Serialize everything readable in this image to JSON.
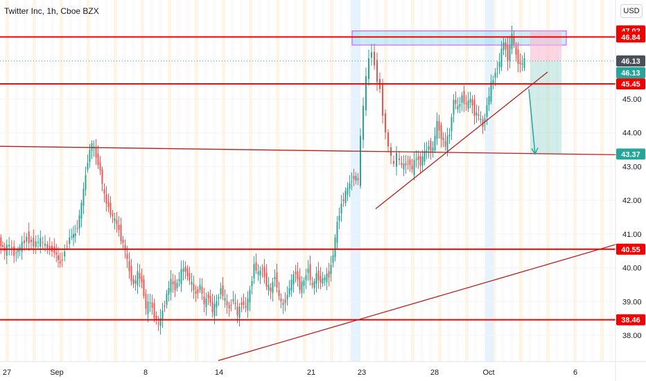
{
  "header": {
    "title": "Twitter Inc, 1h, Cboe BZX"
  },
  "currency_button": {
    "label": "USD"
  },
  "colors": {
    "up": "#26a69a",
    "down": "#ef5350",
    "resistance": "#f20000",
    "trendline": "#b71c1c",
    "current_price": "#4a5059",
    "target_zone": "#b2dfdb",
    "supply_zone": "#80deea",
    "supply_border": "#e040fb",
    "session_orange": "#fff3e0",
    "session_blue": "#e3f2fd"
  },
  "chart_data": {
    "type": "candlestick",
    "title": "Twitter Inc, 1h, Cboe BZX",
    "ylim": [
      37.2,
      48.2
    ],
    "x_ticks": [
      "27",
      "Sep",
      "8",
      "14",
      "21",
      "23",
      "28",
      "Oct",
      "6"
    ],
    "y_ticks": [
      "38.00",
      "39.00",
      "40.00",
      "41.00",
      "42.00",
      "43.00",
      "44.00",
      "45.00"
    ],
    "horizontal_levels": [
      {
        "price": 47.02,
        "label": "47.02"
      },
      {
        "price": 46.84,
        "label": "46.84"
      },
      {
        "price": 45.45,
        "label": "45.45"
      },
      {
        "price": 40.55,
        "label": "40.55"
      },
      {
        "price": 38.46,
        "label": "38.46"
      }
    ],
    "current_price": {
      "price": 46.13,
      "label": "46.13",
      "label2": "46.13"
    },
    "target_price": {
      "price": 43.37,
      "label": "43.37"
    },
    "trendlines": [
      {
        "from": {
          "x": 0,
          "price": 43.6
        },
        "to": {
          "x": 890,
          "price": 43.35
        }
      },
      {
        "from": {
          "x": 542,
          "price": 41.75
        },
        "to": {
          "x": 790,
          "price": 45.8
        }
      },
      {
        "from": {
          "x": 315,
          "price": 37.25
        },
        "to": {
          "x": 890,
          "price": 40.7
        }
      }
    ],
    "supply_zone": {
      "x0": 508,
      "x1": 817,
      "top": 47.02,
      "bottom": 46.6
    },
    "forecast_box": {
      "x0": 765,
      "x1": 810,
      "entry": 46.13,
      "stop": 47.02,
      "target": 43.37
    },
    "forecast_arrow": {
      "from": {
        "x": 763,
        "price": 45.3
      },
      "to": {
        "x": 772,
        "price": 43.37
      }
    },
    "path_points": [
      [
        0,
        40.8
      ],
      [
        8,
        40.5
      ],
      [
        15,
        40.7
      ],
      [
        22,
        40.4
      ],
      [
        30,
        40.6
      ],
      [
        40,
        40.9
      ],
      [
        50,
        40.7
      ],
      [
        60,
        40.8
      ],
      [
        70,
        40.6
      ],
      [
        80,
        40.5
      ],
      [
        88,
        40.1
      ],
      [
        95,
        40.5
      ],
      [
        102,
        40.9
      ],
      [
        110,
        41.0
      ],
      [
        116,
        41.5
      ],
      [
        122,
        42.3
      ],
      [
        128,
        43.2
      ],
      [
        134,
        43.7
      ],
      [
        140,
        43.3
      ],
      [
        146,
        42.9
      ],
      [
        152,
        42.1
      ],
      [
        158,
        41.8
      ],
      [
        164,
        41.5
      ],
      [
        170,
        41.3
      ],
      [
        176,
        40.9
      ],
      [
        182,
        40.5
      ],
      [
        188,
        39.9
      ],
      [
        194,
        39.5
      ],
      [
        200,
        39.8
      ],
      [
        206,
        39.6
      ],
      [
        212,
        38.8
      ],
      [
        218,
        39.0
      ],
      [
        224,
        38.6
      ],
      [
        230,
        38.3
      ],
      [
        236,
        38.7
      ],
      [
        242,
        39.2
      ],
      [
        248,
        39.6
      ],
      [
        254,
        39.4
      ],
      [
        260,
        39.7
      ],
      [
        266,
        40.0
      ],
      [
        272,
        39.8
      ],
      [
        278,
        39.5
      ],
      [
        284,
        39.2
      ],
      [
        290,
        39.5
      ],
      [
        296,
        38.9
      ],
      [
        302,
        39.2
      ],
      [
        308,
        38.7
      ],
      [
        314,
        39.0
      ],
      [
        320,
        39.4
      ],
      [
        326,
        39.0
      ],
      [
        332,
        38.8
      ],
      [
        338,
        39.1
      ],
      [
        344,
        38.6
      ],
      [
        350,
        39.0
      ],
      [
        356,
        38.8
      ],
      [
        362,
        39.3
      ],
      [
        368,
        40.1
      ],
      [
        374,
        39.8
      ],
      [
        380,
        40.0
      ],
      [
        386,
        39.5
      ],
      [
        392,
        39.3
      ],
      [
        398,
        39.8
      ],
      [
        404,
        39.1
      ],
      [
        410,
        38.9
      ],
      [
        416,
        39.2
      ],
      [
        422,
        39.6
      ],
      [
        428,
        39.9
      ],
      [
        434,
        39.4
      ],
      [
        440,
        39.6
      ],
      [
        446,
        40.0
      ],
      [
        452,
        39.4
      ],
      [
        458,
        39.8
      ],
      [
        464,
        39.6
      ],
      [
        470,
        39.7
      ],
      [
        476,
        39.8
      ],
      [
        482,
        40.4
      ],
      [
        488,
        41.3
      ],
      [
        494,
        41.9
      ],
      [
        500,
        42.2
      ],
      [
        506,
        42.5
      ],
      [
        512,
        42.7
      ],
      [
        518,
        42.6
      ],
      [
        522,
        43.8
      ],
      [
        526,
        44.8
      ],
      [
        530,
        45.6
      ],
      [
        534,
        46.2
      ],
      [
        538,
        46.4
      ],
      [
        542,
        46.0
      ],
      [
        546,
        45.6
      ],
      [
        550,
        45.3
      ],
      [
        554,
        44.6
      ],
      [
        558,
        44.0
      ],
      [
        562,
        43.6
      ],
      [
        566,
        43.3
      ],
      [
        570,
        43.0
      ],
      [
        574,
        43.4
      ],
      [
        578,
        43.1
      ],
      [
        584,
        43.0
      ],
      [
        590,
        43.2
      ],
      [
        596,
        42.9
      ],
      [
        602,
        43.3
      ],
      [
        608,
        43.1
      ],
      [
        614,
        43.4
      ],
      [
        620,
        43.6
      ],
      [
        626,
        43.5
      ],
      [
        632,
        44.3
      ],
      [
        638,
        43.9
      ],
      [
        644,
        43.6
      ],
      [
        650,
        44.0
      ],
      [
        656,
        45.0
      ],
      [
        662,
        44.7
      ],
      [
        668,
        45.1
      ],
      [
        674,
        44.8
      ],
      [
        680,
        45.0
      ],
      [
        686,
        44.6
      ],
      [
        692,
        44.5
      ],
      [
        698,
        44.2
      ],
      [
        704,
        44.8
      ],
      [
        710,
        45.4
      ],
      [
        716,
        45.8
      ],
      [
        722,
        46.1
      ],
      [
        728,
        46.7
      ],
      [
        734,
        46.2
      ],
      [
        740,
        46.9
      ],
      [
        746,
        46.3
      ],
      [
        752,
        46.0
      ],
      [
        758,
        46.13
      ]
    ]
  }
}
